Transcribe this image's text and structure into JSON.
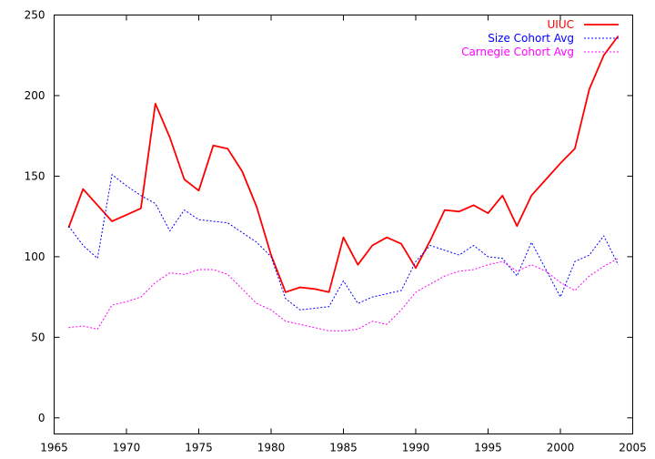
{
  "chart_data": {
    "type": "line",
    "title": "",
    "xlabel": "",
    "ylabel": "",
    "xlim": [
      1965,
      2005
    ],
    "ylim": [
      -10,
      250
    ],
    "xticks": [
      1965,
      1970,
      1975,
      1980,
      1985,
      1990,
      1995,
      2000,
      2005
    ],
    "yticks": [
      0,
      50,
      100,
      150,
      200,
      250
    ],
    "grid": false,
    "legend_position": "top-right",
    "series": [
      {
        "name": "UIUC",
        "color": "#ff0000",
        "style": "solid",
        "x": [
          1966,
          1967,
          1968,
          1969,
          1970,
          1971,
          1972,
          1973,
          1974,
          1975,
          1976,
          1977,
          1978,
          1979,
          1980,
          1981,
          1982,
          1983,
          1984,
          1985,
          1986,
          1987,
          1988,
          1989,
          1990,
          1991,
          1992,
          1993,
          1994,
          1995,
          1996,
          1997,
          1998,
          1999,
          2000,
          2001,
          2002,
          2003,
          2004
        ],
        "values": [
          118,
          142,
          132,
          122,
          126,
          130,
          195,
          174,
          148,
          141,
          169,
          167,
          153,
          131,
          101,
          78,
          81,
          80,
          78,
          112,
          95,
          107,
          112,
          108,
          93,
          110,
          129,
          128,
          132,
          127,
          138,
          119,
          138,
          148,
          158,
          167,
          204,
          225,
          237
        ]
      },
      {
        "name": "Size Cohort Avg",
        "color": "#0000ff",
        "style": "dotted",
        "x": [
          1966,
          1967,
          1968,
          1969,
          1970,
          1971,
          1972,
          1973,
          1974,
          1975,
          1976,
          1977,
          1978,
          1979,
          1980,
          1981,
          1982,
          1983,
          1984,
          1985,
          1986,
          1987,
          1988,
          1989,
          1990,
          1991,
          1992,
          1993,
          1994,
          1995,
          1996,
          1997,
          1998,
          1999,
          2000,
          2001,
          2002,
          2003,
          2004
        ],
        "values": [
          119,
          107,
          99,
          151,
          144,
          138,
          133,
          116,
          129,
          123,
          122,
          121,
          115,
          109,
          100,
          74,
          67,
          68,
          69,
          85,
          71,
          75,
          77,
          79,
          97,
          107,
          104,
          101,
          107,
          100,
          99,
          88,
          109,
          92,
          75,
          97,
          101,
          113,
          95
        ]
      },
      {
        "name": "Carnegie Cohort Avg",
        "color": "#ff00ff",
        "style": "dotted",
        "x": [
          1966,
          1967,
          1968,
          1969,
          1970,
          1971,
          1972,
          1973,
          1974,
          1975,
          1976,
          1977,
          1978,
          1979,
          1980,
          1981,
          1982,
          1983,
          1984,
          1985,
          1986,
          1987,
          1988,
          1989,
          1990,
          1991,
          1992,
          1993,
          1994,
          1995,
          1996,
          1997,
          1998,
          1999,
          2000,
          2001,
          2002,
          2003,
          2004
        ],
        "values": [
          56,
          57,
          55,
          70,
          72,
          75,
          84,
          90,
          89,
          92,
          92,
          89,
          80,
          71,
          67,
          60,
          58,
          56,
          54,
          54,
          55,
          60,
          58,
          67,
          78,
          83,
          88,
          91,
          92,
          95,
          97,
          91,
          95,
          91,
          84,
          79,
          88,
          94,
          99
        ]
      }
    ]
  }
}
